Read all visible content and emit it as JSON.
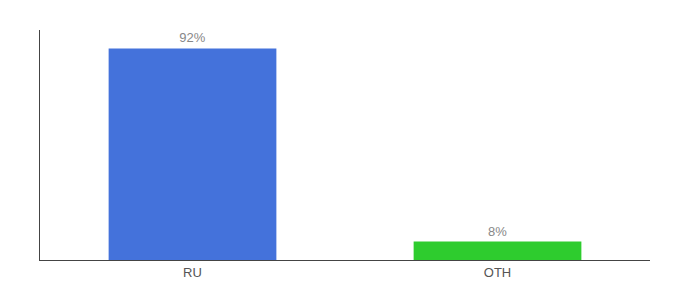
{
  "chart_data": {
    "type": "bar",
    "categories": [
      "RU",
      "OTH"
    ],
    "values": [
      92,
      8
    ],
    "colors": [
      "#4472db",
      "#2ecc2e"
    ],
    "value_labels": [
      "92%",
      "8%"
    ],
    "data_labels": true,
    "ylim": [
      0,
      100
    ],
    "tick_labels": "x",
    "grid": false
  }
}
